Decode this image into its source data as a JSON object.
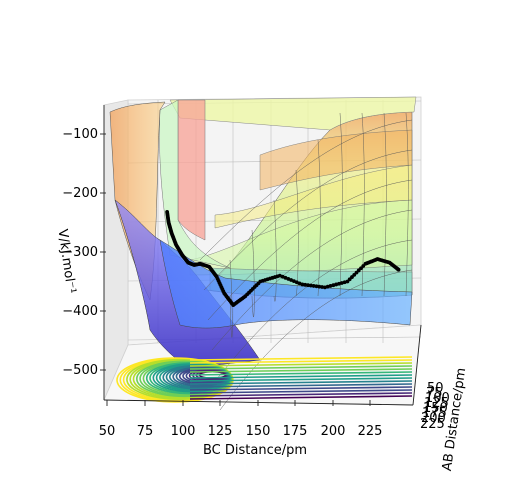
{
  "chart_data": {
    "type": "surface-3d",
    "title": "",
    "xlabel": "BC Distance/pm",
    "ylabel": "AB Distance/pm",
    "zlabel": "V/kJ.mol⁻¹",
    "x_ticks": [
      "50",
      "75",
      "100",
      "125",
      "150",
      "175",
      "200",
      "225"
    ],
    "y_ticks": [
      "50",
      "75",
      "100",
      "125",
      "150",
      "175",
      "200",
      "225"
    ],
    "z_ticks": [
      "−100",
      "−200",
      "−300",
      "−400",
      "−500"
    ],
    "xlim": [
      45,
      250
    ],
    "zlim": [
      -560,
      -70
    ],
    "grid": true,
    "colormap": "jet",
    "trajectory": {
      "name": "",
      "color": "#000000",
      "points": [
        {
          "bc": 90,
          "v": -232
        },
        {
          "bc": 91,
          "v": -250
        },
        {
          "bc": 93,
          "v": -268
        },
        {
          "bc": 96,
          "v": -288
        },
        {
          "bc": 100,
          "v": -305
        },
        {
          "bc": 104,
          "v": -318
        },
        {
          "bc": 108,
          "v": -322
        },
        {
          "bc": 112,
          "v": -320
        },
        {
          "bc": 118,
          "v": -325
        },
        {
          "bc": 123,
          "v": -342
        },
        {
          "bc": 128,
          "v": -370
        },
        {
          "bc": 134,
          "v": -390
        },
        {
          "bc": 142,
          "v": -375
        },
        {
          "bc": 152,
          "v": -350
        },
        {
          "bc": 165,
          "v": -340
        },
        {
          "bc": 180,
          "v": -355
        },
        {
          "bc": 195,
          "v": -360
        },
        {
          "bc": 210,
          "v": -350
        },
        {
          "bc": 222,
          "v": -320
        },
        {
          "bc": 230,
          "v": -312
        },
        {
          "bc": 238,
          "v": -318
        },
        {
          "bc": 244,
          "v": -330
        }
      ]
    }
  }
}
